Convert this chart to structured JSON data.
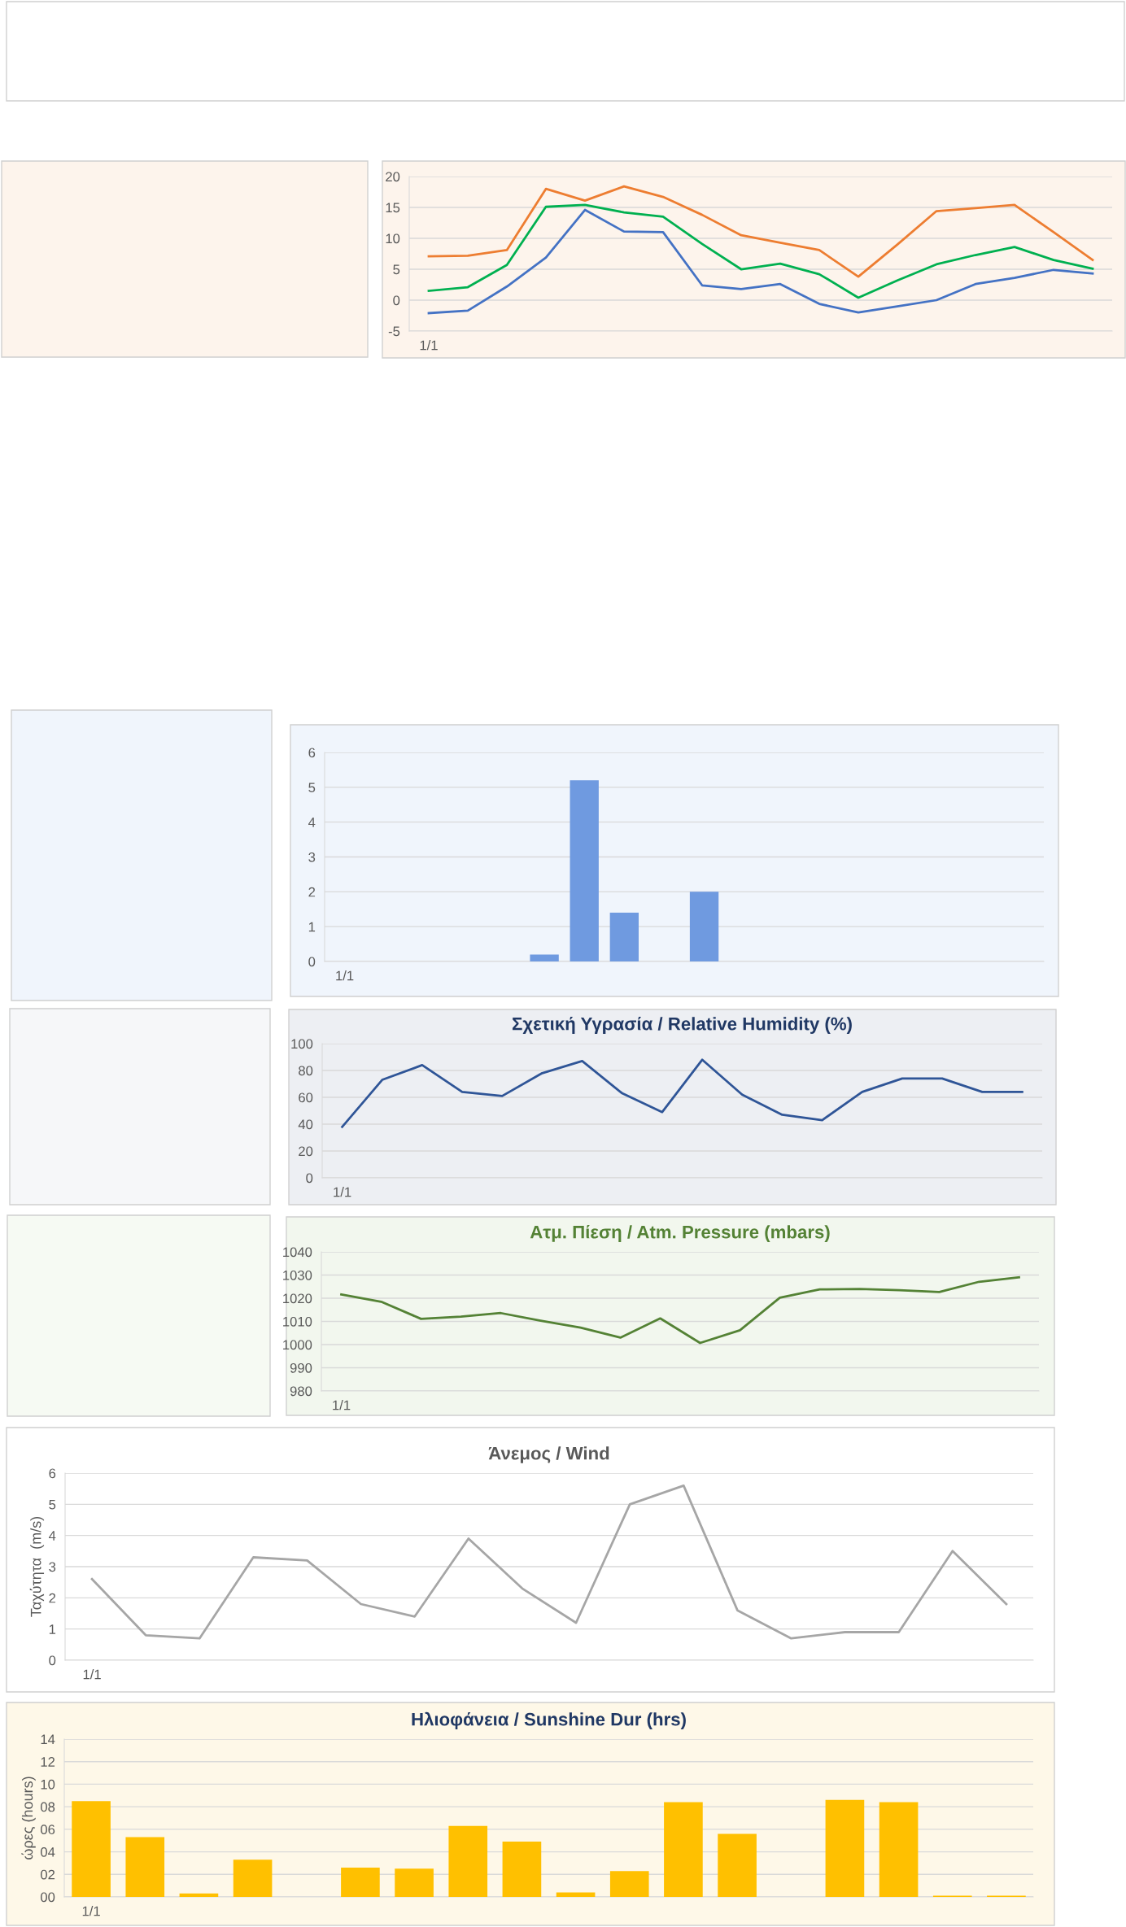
{
  "chart_data": [
    {
      "type": "line",
      "categories": [
        "1/1",
        null,
        null,
        null,
        null,
        null,
        null,
        null,
        null,
        null,
        null,
        null,
        null,
        null,
        null,
        null,
        null,
        null
      ],
      "ylim": [
        -5,
        20
      ],
      "yticks": [
        -5,
        0,
        5,
        10,
        15,
        20
      ],
      "grid": "y",
      "series": [
        {
          "color": "#ed7d31",
          "values": [
            7.1,
            7.2,
            8.1,
            18.0,
            16.1,
            18.4,
            16.7,
            13.8,
            10.5,
            9.3,
            8.1,
            3.8,
            9.0,
            14.4,
            14.9,
            15.4,
            11.0,
            6.5
          ]
        },
        {
          "color": "#00b050",
          "values": [
            1.5,
            2.1,
            5.7,
            15.1,
            15.4,
            14.2,
            13.5,
            9.1,
            5.0,
            5.9,
            4.2,
            0.4,
            3.2,
            5.8,
            7.3,
            8.6,
            6.5,
            5.1
          ]
        },
        {
          "color": "#4472c4",
          "values": [
            -2.1,
            -1.7,
            2.2,
            6.9,
            14.6,
            11.1,
            11.0,
            2.4,
            1.8,
            2.6,
            -0.6,
            -2.0,
            -1.0,
            0.0,
            2.6,
            3.6,
            4.9,
            4.3
          ]
        }
      ]
    },
    {
      "type": "bar",
      "categories": [
        "1/1",
        null,
        null,
        null,
        null,
        null,
        null,
        null,
        null,
        null,
        null,
        null,
        null,
        null,
        null,
        null,
        null,
        null
      ],
      "ylim": [
        0,
        6
      ],
      "yticks": [
        0,
        1,
        2,
        3,
        4,
        5,
        6
      ],
      "grid": "y",
      "series": [
        {
          "color": "#6f9ae0",
          "values": [
            0,
            0,
            0,
            0,
            0,
            0.2,
            5.2,
            1.4,
            0,
            2.0,
            0,
            0,
            0,
            0,
            0,
            0,
            0,
            0
          ]
        }
      ]
    },
    {
      "type": "line",
      "title": "Σχετική Υγρασία / Relative Humidity (%)",
      "categories": [
        "1/1",
        null,
        null,
        null,
        null,
        null,
        null,
        null,
        null,
        null,
        null,
        null,
        null,
        null,
        null,
        null,
        null,
        null
      ],
      "ylim": [
        0,
        100
      ],
      "yticks": [
        0,
        20,
        40,
        60,
        80,
        100
      ],
      "grid": "y",
      "series": [
        {
          "color": "#2f5597",
          "values": [
            38,
            73,
            84,
            64,
            61,
            78,
            87,
            63,
            49,
            88,
            62,
            47,
            43,
            64,
            74,
            74,
            64,
            64
          ]
        }
      ]
    },
    {
      "type": "line",
      "title": "Ατμ. Πίεση / Atm. Pressure (mbars)",
      "categories": [
        "1/1",
        null,
        null,
        null,
        null,
        null,
        null,
        null,
        null,
        null,
        null,
        null,
        null,
        null,
        null,
        null,
        null,
        null
      ],
      "ylim": [
        980,
        1040
      ],
      "yticks": [
        980,
        990,
        1000,
        1010,
        1020,
        1030,
        1040
      ],
      "grid": "y",
      "series": [
        {
          "color": "#548235",
          "values": [
            1021.6,
            1018.5,
            1011.1,
            1012.1,
            1013.6,
            1010.3,
            1007.3,
            1003.0,
            1011.3,
            1000.7,
            1006.2,
            1020.2,
            1023.8,
            1024.0,
            1023.5,
            1022.7,
            1027.1,
            1029.0
          ]
        }
      ]
    },
    {
      "type": "line",
      "title": "Άνεμος / Wind",
      "ylabel": "Ταχύτητα  (m/s)",
      "categories": [
        "1/1",
        null,
        null,
        null,
        null,
        null,
        null,
        null,
        null,
        null,
        null,
        null,
        null,
        null,
        null,
        null,
        null,
        null
      ],
      "ylim": [
        0,
        6
      ],
      "yticks": [
        0,
        1,
        2,
        3,
        4,
        5,
        6
      ],
      "grid": "y",
      "series": [
        {
          "color": "#a6a6a6",
          "values": [
            2.6,
            0.8,
            0.7,
            3.3,
            3.2,
            1.8,
            1.4,
            3.9,
            2.3,
            1.2,
            5.0,
            5.6,
            1.6,
            0.7,
            0.9,
            0.9,
            3.5,
            1.8
          ]
        }
      ]
    },
    {
      "type": "bar",
      "title": "Ηλιοφάνεια / Sunshine Dur (hrs)",
      "ylabel": "ώρες (hours)",
      "categories": [
        "1/1",
        null,
        null,
        null,
        null,
        null,
        null,
        null,
        null,
        null,
        null,
        null,
        null,
        null,
        null,
        null,
        null,
        null
      ],
      "ylim": [
        0,
        14
      ],
      "yticks": [
        {
          "value": 0,
          "label": "00"
        },
        {
          "value": 2,
          "label": "02"
        },
        {
          "value": 4,
          "label": "04"
        },
        {
          "value": 6,
          "label": "06"
        },
        {
          "value": 8,
          "label": "08"
        },
        10,
        12,
        14
      ],
      "grid": "y",
      "series": [
        {
          "color": "#ffc000",
          "values": [
            8.5,
            5.3,
            0.3,
            3.3,
            0,
            2.6,
            2.5,
            6.3,
            4.9,
            0.4,
            2.3,
            8.4,
            5.6,
            0,
            8.6,
            8.4,
            0.1,
            0.1
          ]
        }
      ]
    }
  ]
}
